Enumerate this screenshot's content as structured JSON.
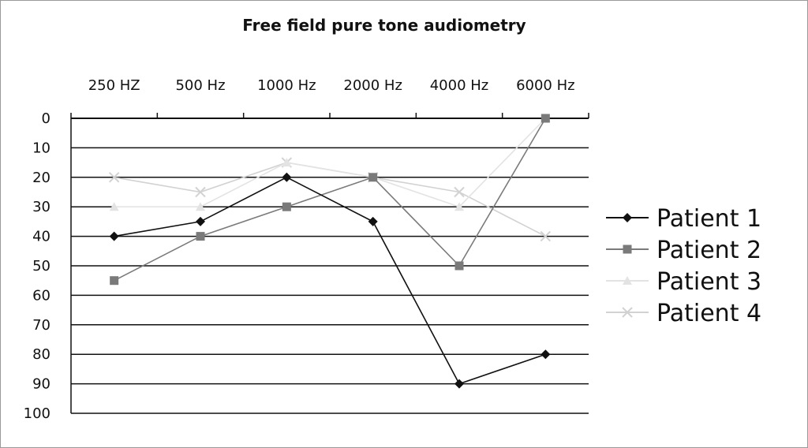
{
  "chart_data": {
    "type": "line",
    "title": "Free field pure tone audiometry",
    "xlabel": "",
    "ylabel": "",
    "categories": [
      "250 HZ",
      "500 Hz",
      "1000 Hz",
      "2000 Hz",
      "4000 Hz",
      "6000 Hz"
    ],
    "x_axis_position": "top",
    "y_axis_inverted": true,
    "ylim": [
      0,
      100
    ],
    "yticks": [
      0,
      10,
      20,
      30,
      40,
      50,
      60,
      70,
      80,
      90,
      100
    ],
    "grid": true,
    "legend": "right",
    "series": [
      {
        "name": "Patient 1",
        "values": [
          40,
          35,
          20,
          35,
          90,
          80
        ],
        "color": "#111111",
        "marker": "diamond"
      },
      {
        "name": "Patient 2",
        "values": [
          55,
          40,
          30,
          20,
          50,
          0
        ],
        "color": "#7a7a7a",
        "marker": "square"
      },
      {
        "name": "Patient 3",
        "values": [
          30,
          30,
          15,
          20,
          30,
          0
        ],
        "color": "#e3e3e3",
        "marker": "triangle"
      },
      {
        "name": "Patient 4",
        "values": [
          20,
          25,
          15,
          20,
          25,
          40
        ],
        "color": "#d2d2d2",
        "marker": "x"
      }
    ]
  }
}
